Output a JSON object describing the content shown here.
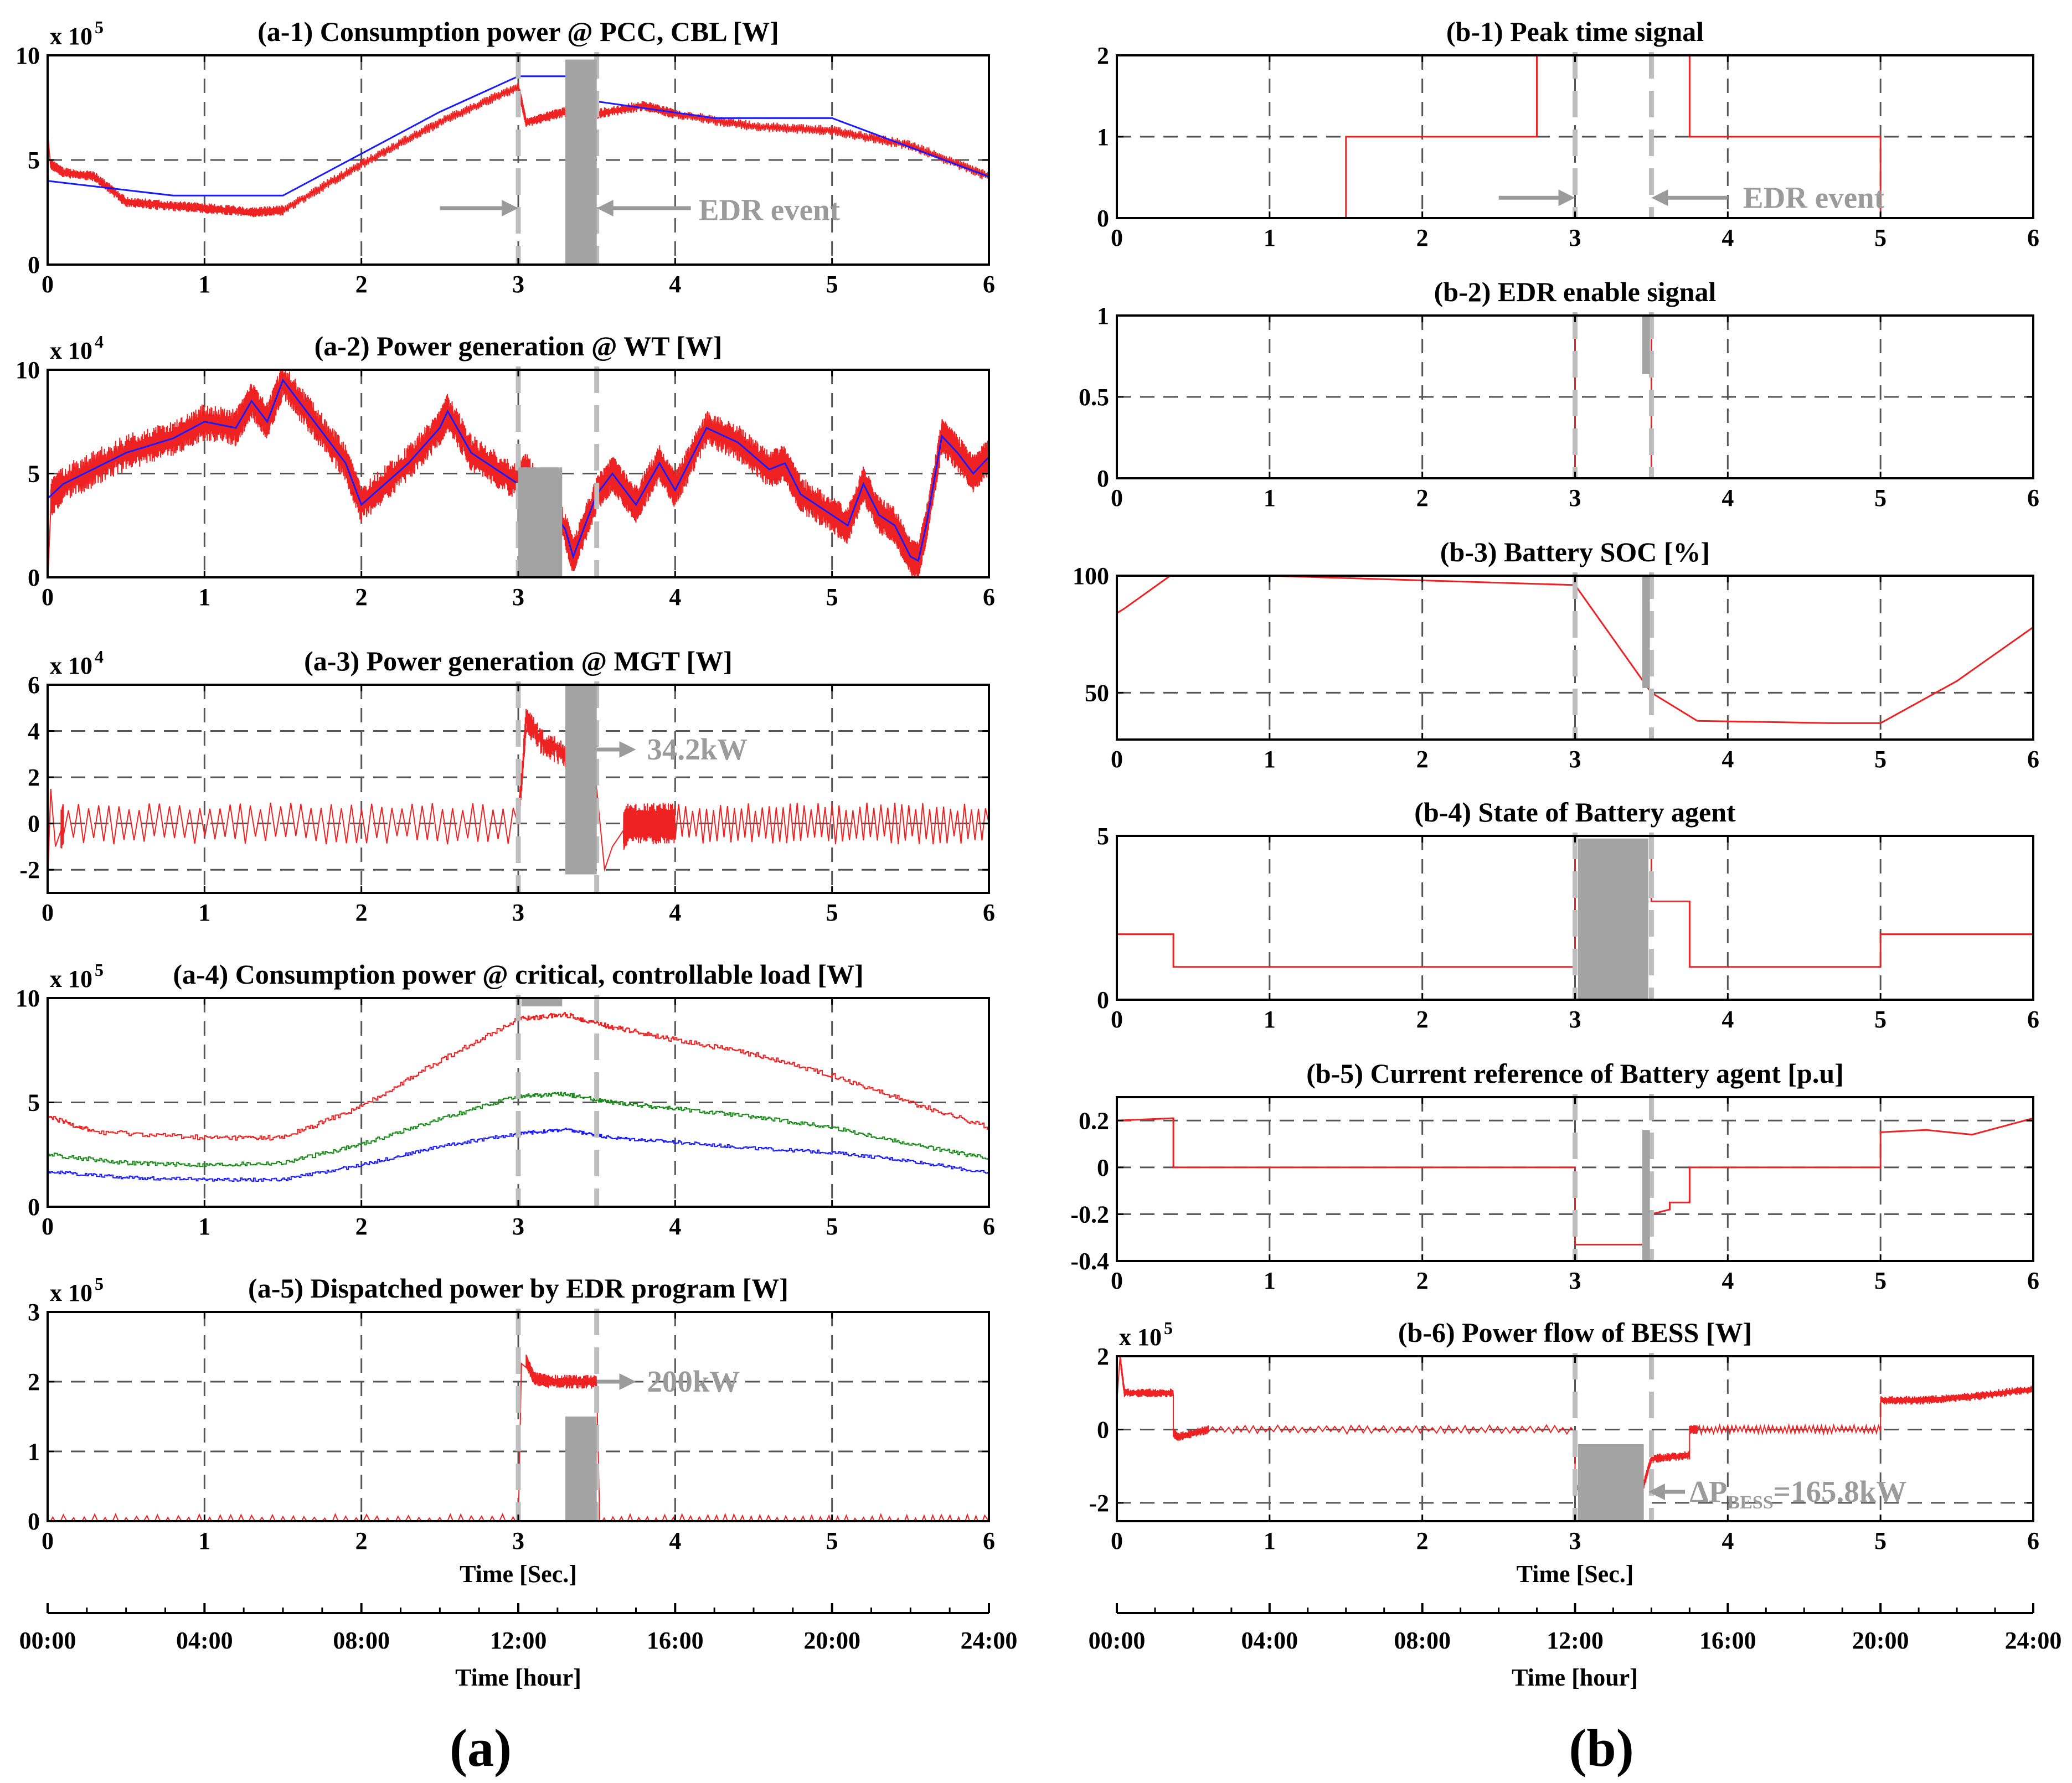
{
  "colors": {
    "red": "#ee2222",
    "blue": "#1a1aff",
    "green": "#1a8a1a",
    "gray": "#a3a3a3",
    "event_line": "#bdbdbd"
  },
  "figure": {
    "left_label": "(a)",
    "right_label": "(b)"
  },
  "x_axis": {
    "ticks": [
      "0",
      "1",
      "2",
      "3",
      "4",
      "5",
      "6"
    ],
    "label": "Time [Sec.]"
  },
  "hour_axis": {
    "ticks": [
      "00:00",
      "04:00",
      "08:00",
      "12:00",
      "16:00",
      "20:00",
      "24:00"
    ],
    "label": "Time [hour]"
  },
  "chart_data": [
    {
      "id": "a1",
      "type": "line",
      "title": "(a-1) Consumption power @ PCC, CBL [W]",
      "multiplier": "x 10",
      "exponent": "5",
      "xlim": [
        0,
        6
      ],
      "ylim": [
        0,
        10
      ],
      "yticks": [
        "0",
        "5",
        "10"
      ],
      "series": [
        {
          "color": "red",
          "noise": 0.25,
          "x": [
            0,
            0.02,
            0.1,
            0.3,
            0.5,
            0.8,
            1.0,
            1.3,
            1.5,
            2.0,
            2.5,
            3.0,
            3.05,
            3.3,
            3.5,
            3.8,
            4.0,
            4.5,
            5.0,
            5.5,
            6.0
          ],
          "y": [
            6.5,
            4.8,
            4.4,
            4.2,
            3.0,
            2.8,
            2.7,
            2.5,
            2.6,
            4.8,
            6.8,
            8.5,
            6.8,
            7.3,
            7.2,
            7.6,
            7.2,
            6.6,
            6.4,
            5.7,
            4.2
          ]
        },
        {
          "color": "blue",
          "noise": 0,
          "x": [
            0,
            0.8,
            1.5,
            2.5,
            3.0,
            3.3,
            3.5,
            4.25,
            5.0,
            6.0
          ],
          "y": [
            4.0,
            3.3,
            3.3,
            7.3,
            9.0,
            9.0,
            7.8,
            7.0,
            7.0,
            4.2
          ]
        }
      ],
      "event_lines": [
        3.0,
        3.5
      ],
      "rects": [
        [
          3.3,
          3.5,
          0,
          9.8
        ]
      ],
      "annotations": [
        {
          "text": "EDR event",
          "x": 4.15,
          "y": 2.6
        }
      ],
      "arrows": [
        [
          2.5,
          3.0,
          2.7
        ],
        [
          4.1,
          3.5,
          2.7
        ]
      ]
    },
    {
      "id": "a2",
      "type": "line",
      "title": "(a-2) Power generation @ WT [W]",
      "multiplier": "x 10",
      "exponent": "4",
      "xlim": [
        0,
        6
      ],
      "ylim": [
        0,
        10
      ],
      "yticks": [
        "0",
        "5",
        "10"
      ],
      "series": [
        {
          "color": "red",
          "noise": 0.9,
          "x": [
            0,
            0.02,
            0.1,
            0.5,
            0.8,
            1.0,
            1.2,
            1.3,
            1.4,
            1.5,
            1.7,
            1.9,
            2.0,
            2.3,
            2.5,
            2.55,
            2.7,
            3.0,
            3.05,
            3.3,
            3.35,
            3.5,
            3.6,
            3.65,
            3.75,
            3.9,
            4.0,
            4.2,
            4.4,
            4.6,
            4.7,
            4.8,
            5.0,
            5.1,
            5.2,
            5.3,
            5.4,
            5.5,
            5.55,
            5.6,
            5.7,
            5.8,
            5.9,
            6.0
          ],
          "y": [
            0.5,
            3.8,
            4.5,
            6.0,
            6.7,
            7.5,
            7.2,
            8.5,
            7.5,
            9.5,
            7.5,
            5.5,
            3.5,
            5.5,
            7.2,
            8.0,
            6.0,
            4.5,
            5.2,
            2.3,
            1.0,
            4.0,
            5.0,
            4.5,
            3.5,
            5.5,
            4.2,
            7.2,
            6.5,
            5.2,
            5.5,
            4.0,
            3.0,
            2.5,
            4.5,
            3.0,
            2.5,
            1.0,
            0.8,
            2.5,
            6.8,
            6.0,
            5.0,
            5.8
          ]
        },
        {
          "color": "blue",
          "noise": 0,
          "x": [
            0,
            0.1,
            0.5,
            0.8,
            1.0,
            1.2,
            1.3,
            1.4,
            1.5,
            1.7,
            1.9,
            2.0,
            2.3,
            2.5,
            2.55,
            2.7,
            3.0,
            3.05,
            3.3,
            3.35,
            3.5,
            3.6,
            3.65,
            3.75,
            3.9,
            4.0,
            4.2,
            4.4,
            4.6,
            4.7,
            4.8,
            5.0,
            5.1,
            5.2,
            5.3,
            5.4,
            5.5,
            5.55,
            5.6,
            5.7,
            5.8,
            5.9,
            6.0
          ],
          "y": [
            3.8,
            4.5,
            6.0,
            6.7,
            7.5,
            7.2,
            8.5,
            7.5,
            9.5,
            7.5,
            5.5,
            3.5,
            5.5,
            7.2,
            8.0,
            6.0,
            4.5,
            5.2,
            2.3,
            1.0,
            4.0,
            5.0,
            4.5,
            3.5,
            5.5,
            4.2,
            7.2,
            6.5,
            5.2,
            5.5,
            4.0,
            3.0,
            2.5,
            4.5,
            3.0,
            2.5,
            1.0,
            0.8,
            2.5,
            6.8,
            6.0,
            5.0,
            5.8
          ]
        }
      ],
      "event_lines": [
        3.0,
        3.5
      ],
      "rects": [
        [
          3.0,
          3.28,
          0,
          5.3
        ]
      ],
      "annotations": [],
      "arrows": []
    },
    {
      "id": "a3",
      "type": "line",
      "title": "(a-3) Power generation @ MGT [W]",
      "multiplier": "x 10",
      "exponent": "4",
      "xlim": [
        0,
        6
      ],
      "ylim": [
        -3,
        6
      ],
      "yticks": [
        "-2",
        "0",
        "2",
        "4",
        "6"
      ],
      "series": [
        {
          "color": "red",
          "noise": 0.0,
          "osc": 0.9,
          "x": [
            0,
            0.02,
            0.05,
            0.1,
            3.0,
            3.05,
            3.15,
            3.3,
            3.5,
            3.55,
            3.6,
            3.7,
            4.0,
            6.0
          ],
          "y": [
            -2.5,
            1.5,
            -1.0,
            0,
            0,
            4.5,
            3.5,
            3.0,
            1.5,
            -2.0,
            -1.0,
            0,
            0,
            0
          ]
        }
      ],
      "event_lines": [
        3.0,
        3.5
      ],
      "rects": [
        [
          3.3,
          3.5,
          -2.2,
          6.0
        ]
      ],
      "annotations": [
        {
          "text": "34.2kW",
          "x": 3.82,
          "y": 3.2
        }
      ],
      "arrows": [
        [
          3.5,
          3.75,
          3.2
        ]
      ]
    },
    {
      "id": "a4",
      "type": "line",
      "title": "(a-4) Consumption power @ critical, controllable load [W]",
      "multiplier": "x 10",
      "exponent": "5",
      "xlim": [
        0,
        6
      ],
      "ylim": [
        0,
        10
      ],
      "yticks": [
        "0",
        "5",
        "10"
      ],
      "series": [
        {
          "color": "red",
          "noise": 0.12,
          "step": true,
          "x": [
            0,
            0.3,
            1.0,
            1.5,
            2.0,
            2.5,
            3.0,
            3.3,
            3.6,
            4.0,
            4.5,
            5.0,
            5.5,
            6.0
          ],
          "y": [
            4.3,
            3.6,
            3.3,
            3.3,
            4.8,
            7.0,
            9.0,
            9.2,
            8.6,
            8.0,
            7.3,
            6.3,
            5.0,
            3.8
          ]
        },
        {
          "color": "green",
          "noise": 0.1,
          "step": true,
          "x": [
            0,
            0.5,
            1.0,
            1.5,
            2.0,
            2.5,
            3.0,
            3.3,
            3.6,
            4.0,
            4.5,
            5.0,
            5.5,
            6.0
          ],
          "y": [
            2.5,
            2.1,
            2.0,
            2.1,
            3.0,
            4.2,
            5.3,
            5.4,
            5.0,
            4.7,
            4.3,
            3.8,
            3.0,
            2.3
          ]
        },
        {
          "color": "blue",
          "noise": 0.08,
          "step": true,
          "x": [
            0,
            0.5,
            1.0,
            1.5,
            2.0,
            2.5,
            3.0,
            3.3,
            3.6,
            4.0,
            4.5,
            5.0,
            5.5,
            6.0
          ],
          "y": [
            1.7,
            1.4,
            1.3,
            1.3,
            2.0,
            2.9,
            3.5,
            3.7,
            3.3,
            3.1,
            2.8,
            2.6,
            2.2,
            1.6
          ]
        }
      ],
      "event_lines": [
        3.0,
        3.5
      ],
      "rects": [
        [
          3.02,
          3.28,
          9.6,
          10.0
        ]
      ],
      "annotations": [],
      "arrows": []
    },
    {
      "id": "a5",
      "type": "line",
      "title": "(a-5) Dispatched power by EDR program [W]",
      "multiplier": "x 10",
      "exponent": "5",
      "xlim": [
        0,
        6
      ],
      "ylim": [
        0,
        3
      ],
      "yticks": [
        "0",
        "1",
        "2",
        "3"
      ],
      "series": [
        {
          "color": "red",
          "noise": 0.1,
          "x": [
            0,
            3.0,
            3.02,
            3.05,
            3.1,
            3.2,
            3.5,
            3.52,
            6.0
          ],
          "y": [
            0,
            0,
            2.3,
            2.3,
            2.05,
            2.0,
            2.0,
            0,
            0
          ]
        }
      ],
      "event_lines": [
        3.0,
        3.5
      ],
      "rects": [
        [
          3.3,
          3.5,
          0,
          1.5
        ]
      ],
      "annotations": [
        {
          "text": "200kW",
          "x": 3.82,
          "y": 2.0
        }
      ],
      "arrows": [
        [
          3.5,
          3.75,
          2.0
        ]
      ]
    },
    {
      "id": "b1",
      "type": "line",
      "title": "(b-1) Peak time signal",
      "xlim": [
        0,
        6
      ],
      "ylim": [
        0,
        2
      ],
      "yticks": [
        "0",
        "1",
        "2"
      ],
      "series": [
        {
          "color": "red",
          "noise": 0,
          "x": [
            0,
            1.5,
            1.5,
            2.75,
            2.75,
            3.75,
            3.75,
            5.0,
            5.0,
            6.0
          ],
          "y": [
            0,
            0,
            1,
            1,
            2,
            2,
            1,
            1,
            0,
            0
          ]
        }
      ],
      "event_lines": [
        3.0,
        3.5
      ],
      "rects": [],
      "annotations": [
        {
          "text": "EDR event",
          "x": 4.1,
          "y": 0.25
        }
      ],
      "arrows": [
        [
          2.5,
          3.0,
          0.25
        ],
        [
          4.0,
          3.5,
          0.25
        ]
      ]
    },
    {
      "id": "b2",
      "type": "line",
      "title": "(b-2) EDR enable signal",
      "xlim": [
        0,
        6
      ],
      "ylim": [
        0,
        1
      ],
      "yticks": [
        "0",
        "0.5",
        "1"
      ],
      "series": [
        {
          "color": "red",
          "noise": 0,
          "x": [
            0,
            3.0,
            3.0,
            3.5,
            3.5,
            6.0
          ],
          "y": [
            0,
            0,
            1,
            1,
            0,
            0
          ]
        }
      ],
      "event_lines": [
        3.0,
        3.5
      ],
      "rects": [
        [
          3.44,
          3.49,
          0.64,
          1.0
        ]
      ],
      "annotations": [],
      "arrows": []
    },
    {
      "id": "b3",
      "type": "line",
      "title": "(b-3) Battery SOC [%]",
      "xlim": [
        0,
        6
      ],
      "ylim": [
        30,
        100
      ],
      "yticks": [
        "50",
        "100"
      ],
      "series": [
        {
          "color": "red",
          "noise": 0,
          "x": [
            0,
            0.05,
            0.35,
            1.0,
            1.5,
            2.0,
            3.0,
            3.5,
            3.8,
            4.7,
            5.0,
            5.5,
            6.0
          ],
          "y": [
            84,
            86,
            100,
            100,
            99,
            98,
            96,
            50,
            38,
            37,
            37,
            55,
            78
          ]
        }
      ],
      "event_lines": [
        3.0,
        3.5
      ],
      "rects": [
        [
          3.44,
          3.49,
          52,
          100
        ]
      ],
      "annotations": [],
      "arrows": []
    },
    {
      "id": "b4",
      "type": "line",
      "title": "(b-4) State of Battery agent",
      "xlim": [
        0,
        6
      ],
      "ylim": [
        0,
        5
      ],
      "yticks": [
        "0",
        "5"
      ],
      "series": [
        {
          "color": "red",
          "noise": 0,
          "x": [
            0,
            0.37,
            0.37,
            3.0,
            3.0,
            3.5,
            3.5,
            3.75,
            3.75,
            5.0,
            5.0,
            6.0
          ],
          "y": [
            2,
            2,
            1,
            1,
            5,
            5,
            3,
            3,
            1,
            1,
            2,
            2
          ]
        }
      ],
      "event_lines": [
        3.0,
        3.5
      ],
      "rects": [
        [
          3.02,
          3.48,
          0,
          4.92
        ]
      ],
      "annotations": [],
      "arrows": []
    },
    {
      "id": "b5",
      "type": "line",
      "title": "(b-5) Current reference of Battery agent [p.u]",
      "xlim": [
        0,
        6
      ],
      "ylim": [
        -0.4,
        0.3
      ],
      "yticks": [
        "-0.4",
        "-0.2",
        "0",
        "0.2"
      ],
      "series": [
        {
          "color": "red",
          "noise": 0,
          "x": [
            0,
            0.37,
            0.37,
            3.0,
            3.0,
            3.45,
            3.5,
            3.62,
            3.62,
            3.75,
            3.75,
            5.0,
            5.0,
            5.3,
            5.6,
            6.0
          ],
          "y": [
            0.2,
            0.21,
            0,
            0,
            -0.33,
            -0.33,
            -0.2,
            -0.18,
            -0.15,
            -0.15,
            0,
            0,
            0.15,
            0.16,
            0.14,
            0.21
          ]
        }
      ],
      "event_lines": [
        3.0,
        3.5
      ],
      "rects": [
        [
          3.44,
          3.49,
          -0.4,
          0.16
        ]
      ],
      "annotations": [],
      "arrows": []
    },
    {
      "id": "b6",
      "type": "line",
      "title": "(b-6) Power flow of BESS [W]",
      "multiplier": "x 10",
      "exponent": "5",
      "xlim": [
        0,
        6
      ],
      "ylim": [
        -2.5,
        2
      ],
      "yticks": [
        "-2",
        "0",
        "2"
      ],
      "series": [
        {
          "color": "red",
          "noise": 0.12,
          "x": [
            0,
            0.02,
            0.05,
            0.37,
            0.37,
            0.4,
            0.6,
            3.0,
            3.0,
            3.45,
            3.5,
            3.75,
            3.75,
            3.8,
            5.0,
            5.0,
            5.3,
            5.6,
            6.0
          ],
          "y": [
            0.8,
            2.0,
            1.0,
            1.0,
            -0.1,
            -0.2,
            0,
            0,
            -1.6,
            -1.5,
            -0.8,
            -0.7,
            0,
            0,
            0,
            0.8,
            0.8,
            0.9,
            1.1
          ]
        }
      ],
      "event_lines": [
        3.0,
        3.5
      ],
      "rects": [
        [
          3.02,
          3.45,
          -2.5,
          -0.4
        ]
      ],
      "annotations": [
        {
          "text": "ΔPBESS=165.8kW",
          "x": 3.75,
          "y": -1.7
        }
      ],
      "arrows": [
        [
          3.72,
          3.48,
          -1.7
        ]
      ]
    }
  ]
}
